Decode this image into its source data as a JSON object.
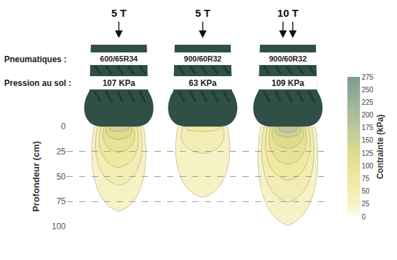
{
  "chart_data": {
    "type": "stress_bulb",
    "ylabel": "Profondeur (cm)",
    "ylim": [
      100,
      0
    ],
    "yticks": [
      0,
      25,
      50,
      75,
      100
    ],
    "xlim": [
      0,
      262
    ],
    "grid": true,
    "tick_labels": "y",
    "row_labels": [
      "Pneumatiques :",
      "Pression au sol :"
    ],
    "colorbar": {
      "title": "Contrainte (kPa)",
      "range": [
        0,
        275
      ],
      "ticks": [
        0,
        25,
        50,
        75,
        100,
        125,
        150,
        175,
        200,
        225,
        250,
        275
      ]
    },
    "tyres": [
      {
        "load": "5 T",
        "arrows": 1,
        "tyre": "600/65R34",
        "pressure": "107 KPa",
        "bulb": [
          {
            "stress": 25,
            "depth": 85,
            "half_width": 29
          },
          {
            "stress": 50,
            "depth": 59,
            "half_width": 25
          },
          {
            "stress": 75,
            "depth": 41,
            "half_width": 21
          },
          {
            "stress": 100,
            "depth": 26,
            "half_width": 17
          },
          {
            "stress": 125,
            "depth": 13,
            "half_width": 14
          },
          {
            "stress": 150,
            "depth": 5,
            "half_width": 11
          }
        ]
      },
      {
        "load": "5 T",
        "arrows": 1,
        "tyre": "900/60R32",
        "pressure": "63 KPa",
        "bulb": [
          {
            "stress": 25,
            "depth": 71,
            "half_width": 29
          },
          {
            "stress": 50,
            "depth": 27,
            "half_width": 23
          },
          {
            "stress": 75,
            "depth": 5,
            "half_width": 18
          }
        ]
      },
      {
        "load": "10 T",
        "arrows": 2,
        "tyre": "900/60R32",
        "pressure": "109 KPa",
        "bulb": [
          {
            "stress": 25,
            "depth": 99,
            "half_width": 32
          },
          {
            "stress": 50,
            "depth": 76,
            "half_width": 28
          },
          {
            "stress": 75,
            "depth": 54,
            "half_width": 24
          },
          {
            "stress": 100,
            "depth": 38,
            "half_width": 20
          },
          {
            "stress": 125,
            "depth": 22,
            "half_width": 17
          },
          {
            "stress": 150,
            "depth": 11,
            "half_width": 14
          },
          {
            "stress": 175,
            "depth": 6,
            "half_width": 10
          }
        ]
      }
    ]
  }
}
